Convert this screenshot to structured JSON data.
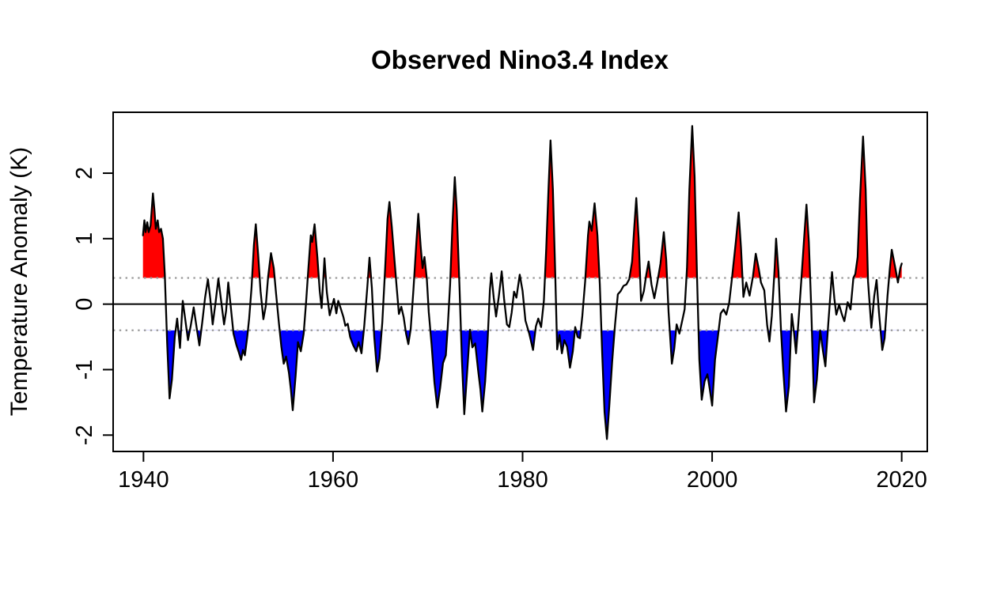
{
  "chart_data": {
    "type": "area",
    "title": "Observed Nino3.4 Index",
    "xlabel": "",
    "ylabel": "Temperature Anomaly (K)",
    "xlim": [
      1936.8,
      2022.7
    ],
    "ylim": [
      -2.25,
      2.93
    ],
    "x_ticks": [
      1940,
      1960,
      1980,
      2000,
      2020
    ],
    "x_tick_labels": [
      "1940",
      "1960",
      "1980",
      "2000",
      "2020"
    ],
    "y_ticks": [
      -2,
      -1,
      0,
      1,
      2
    ],
    "y_tick_labels": [
      "-2",
      "-1",
      "0",
      "1",
      "2"
    ],
    "zero_line": 0,
    "thresholds": {
      "el_nino": 0.4,
      "la_nina": -0.4
    },
    "grid": "off",
    "legend": "none",
    "colors": {
      "warm_fill": "#ff0000",
      "cold_fill": "#0000ff",
      "line": "#000000",
      "threshold_dotted": "#9a9a9a",
      "axis": "#000000",
      "background": "#ffffff"
    },
    "series": [
      {
        "name": "Nino3.4 temperature anomaly",
        "points": [
          [
            1939.95,
            1.05
          ],
          [
            1940.1,
            1.28
          ],
          [
            1940.22,
            1.1
          ],
          [
            1940.4,
            1.25
          ],
          [
            1940.55,
            1.1
          ],
          [
            1940.75,
            1.2
          ],
          [
            1941.0,
            1.69
          ],
          [
            1941.15,
            1.45
          ],
          [
            1941.3,
            1.15
          ],
          [
            1941.5,
            1.28
          ],
          [
            1941.65,
            1.1
          ],
          [
            1941.85,
            1.15
          ],
          [
            1942.05,
            1.0
          ],
          [
            1942.25,
            0.45
          ],
          [
            1942.5,
            -0.6
          ],
          [
            1942.75,
            -1.44
          ],
          [
            1943.0,
            -1.15
          ],
          [
            1943.3,
            -0.5
          ],
          [
            1943.55,
            -0.22
          ],
          [
            1943.85,
            -0.67
          ],
          [
            1944.15,
            0.05
          ],
          [
            1944.4,
            -0.22
          ],
          [
            1944.7,
            -0.55
          ],
          [
            1945.0,
            -0.32
          ],
          [
            1945.3,
            -0.05
          ],
          [
            1945.6,
            -0.35
          ],
          [
            1945.9,
            -0.63
          ],
          [
            1946.2,
            -0.28
          ],
          [
            1946.5,
            0.1
          ],
          [
            1946.8,
            0.38
          ],
          [
            1947.05,
            0.08
          ],
          [
            1947.3,
            -0.31
          ],
          [
            1947.6,
            0.02
          ],
          [
            1947.9,
            0.39
          ],
          [
            1948.2,
            0.04
          ],
          [
            1948.5,
            -0.31
          ],
          [
            1948.72,
            -0.1
          ],
          [
            1948.95,
            0.33
          ],
          [
            1949.2,
            -0.02
          ],
          [
            1949.5,
            -0.45
          ],
          [
            1949.8,
            -0.62
          ],
          [
            1950.05,
            -0.73
          ],
          [
            1950.3,
            -0.85
          ],
          [
            1950.5,
            -0.7
          ],
          [
            1950.7,
            -0.78
          ],
          [
            1950.95,
            -0.5
          ],
          [
            1951.15,
            -0.22
          ],
          [
            1951.4,
            0.25
          ],
          [
            1951.65,
            0.9
          ],
          [
            1951.85,
            1.22
          ],
          [
            1952.1,
            0.75
          ],
          [
            1952.35,
            0.2
          ],
          [
            1952.65,
            -0.23
          ],
          [
            1952.9,
            -0.03
          ],
          [
            1953.15,
            0.42
          ],
          [
            1953.45,
            0.78
          ],
          [
            1953.75,
            0.55
          ],
          [
            1954.0,
            0.15
          ],
          [
            1954.3,
            -0.3
          ],
          [
            1954.55,
            -0.65
          ],
          [
            1954.8,
            -0.91
          ],
          [
            1955.05,
            -0.8
          ],
          [
            1955.35,
            -1.05
          ],
          [
            1955.55,
            -1.3
          ],
          [
            1955.75,
            -1.62
          ],
          [
            1956.05,
            -1.1
          ],
          [
            1956.3,
            -0.58
          ],
          [
            1956.6,
            -0.72
          ],
          [
            1956.9,
            -0.45
          ],
          [
            1957.15,
            0.02
          ],
          [
            1957.4,
            0.55
          ],
          [
            1957.65,
            1.05
          ],
          [
            1957.8,
            0.95
          ],
          [
            1958.05,
            1.22
          ],
          [
            1958.35,
            0.72
          ],
          [
            1958.6,
            0.2
          ],
          [
            1958.8,
            -0.06
          ],
          [
            1959.1,
            0.7
          ],
          [
            1959.35,
            0.18
          ],
          [
            1959.65,
            -0.17
          ],
          [
            1959.9,
            -0.03
          ],
          [
            1960.1,
            0.08
          ],
          [
            1960.35,
            -0.14
          ],
          [
            1960.55,
            0.05
          ],
          [
            1960.8,
            -0.06
          ],
          [
            1961.1,
            -0.2
          ],
          [
            1961.3,
            -0.33
          ],
          [
            1961.55,
            -0.3
          ],
          [
            1961.8,
            -0.5
          ],
          [
            1962.1,
            -0.62
          ],
          [
            1962.45,
            -0.72
          ],
          [
            1962.7,
            -0.58
          ],
          [
            1963.0,
            -0.75
          ],
          [
            1963.3,
            -0.33
          ],
          [
            1963.6,
            0.22
          ],
          [
            1963.85,
            0.71
          ],
          [
            1964.1,
            0.25
          ],
          [
            1964.35,
            -0.5
          ],
          [
            1964.65,
            -1.03
          ],
          [
            1964.9,
            -0.83
          ],
          [
            1965.2,
            -0.28
          ],
          [
            1965.5,
            0.55
          ],
          [
            1965.75,
            1.3
          ],
          [
            1965.95,
            1.56
          ],
          [
            1966.2,
            1.18
          ],
          [
            1966.45,
            0.73
          ],
          [
            1966.7,
            0.28
          ],
          [
            1966.95,
            -0.15
          ],
          [
            1967.2,
            -0.04
          ],
          [
            1967.45,
            -0.2
          ],
          [
            1967.7,
            -0.45
          ],
          [
            1967.95,
            -0.61
          ],
          [
            1968.2,
            -0.38
          ],
          [
            1968.5,
            0.25
          ],
          [
            1968.8,
            0.95
          ],
          [
            1969.0,
            1.38
          ],
          [
            1969.25,
            0.88
          ],
          [
            1969.45,
            0.55
          ],
          [
            1969.65,
            0.72
          ],
          [
            1969.9,
            0.38
          ],
          [
            1970.1,
            -0.12
          ],
          [
            1970.4,
            -0.62
          ],
          [
            1970.7,
            -1.2
          ],
          [
            1971.0,
            -1.58
          ],
          [
            1971.3,
            -1.28
          ],
          [
            1971.6,
            -0.9
          ],
          [
            1971.9,
            -0.78
          ],
          [
            1972.1,
            -0.35
          ],
          [
            1972.35,
            0.3
          ],
          [
            1972.6,
            1.2
          ],
          [
            1972.85,
            1.94
          ],
          [
            1973.05,
            1.45
          ],
          [
            1973.35,
            0.25
          ],
          [
            1973.6,
            -0.85
          ],
          [
            1973.85,
            -1.68
          ],
          [
            1974.1,
            -1.15
          ],
          [
            1974.45,
            -0.39
          ],
          [
            1974.7,
            -0.66
          ],
          [
            1975.0,
            -0.6
          ],
          [
            1975.3,
            -1.0
          ],
          [
            1975.55,
            -1.3
          ],
          [
            1975.75,
            -1.64
          ],
          [
            1976.05,
            -1.18
          ],
          [
            1976.3,
            -0.58
          ],
          [
            1976.55,
            0.22
          ],
          [
            1976.7,
            0.47
          ],
          [
            1976.95,
            0.1
          ],
          [
            1977.2,
            -0.19
          ],
          [
            1977.5,
            0.12
          ],
          [
            1977.8,
            0.5
          ],
          [
            1978.05,
            0.08
          ],
          [
            1978.35,
            -0.31
          ],
          [
            1978.6,
            -0.35
          ],
          [
            1978.85,
            -0.13
          ],
          [
            1979.1,
            0.19
          ],
          [
            1979.35,
            0.1
          ],
          [
            1979.7,
            0.45
          ],
          [
            1980.0,
            0.2
          ],
          [
            1980.3,
            -0.25
          ],
          [
            1980.7,
            -0.45
          ],
          [
            1981.1,
            -0.7
          ],
          [
            1981.4,
            -0.34
          ],
          [
            1981.65,
            -0.22
          ],
          [
            1981.95,
            -0.35
          ],
          [
            1982.25,
            0.05
          ],
          [
            1982.5,
            0.85
          ],
          [
            1982.75,
            1.8
          ],
          [
            1982.95,
            2.5
          ],
          [
            1983.2,
            1.75
          ],
          [
            1983.45,
            0.45
          ],
          [
            1983.65,
            -0.69
          ],
          [
            1983.9,
            -0.47
          ],
          [
            1984.15,
            -0.75
          ],
          [
            1984.4,
            -0.55
          ],
          [
            1984.7,
            -0.65
          ],
          [
            1985.0,
            -0.97
          ],
          [
            1985.3,
            -0.72
          ],
          [
            1985.55,
            -0.35
          ],
          [
            1985.8,
            -0.5
          ],
          [
            1986.05,
            -0.52
          ],
          [
            1986.3,
            -0.18
          ],
          [
            1986.6,
            0.35
          ],
          [
            1986.9,
            1.05
          ],
          [
            1987.05,
            1.26
          ],
          [
            1987.3,
            1.12
          ],
          [
            1987.6,
            1.54
          ],
          [
            1987.9,
            1.05
          ],
          [
            1988.15,
            0.3
          ],
          [
            1988.4,
            -0.75
          ],
          [
            1988.65,
            -1.65
          ],
          [
            1988.9,
            -2.06
          ],
          [
            1989.15,
            -1.55
          ],
          [
            1989.45,
            -0.88
          ],
          [
            1989.75,
            -0.32
          ],
          [
            1990.05,
            0.15
          ],
          [
            1990.35,
            0.2
          ],
          [
            1990.65,
            0.28
          ],
          [
            1990.95,
            0.3
          ],
          [
            1991.25,
            0.38
          ],
          [
            1991.55,
            0.65
          ],
          [
            1991.8,
            1.2
          ],
          [
            1992.0,
            1.62
          ],
          [
            1992.25,
            1.0
          ],
          [
            1992.5,
            0.05
          ],
          [
            1992.8,
            0.2
          ],
          [
            1993.05,
            0.45
          ],
          [
            1993.3,
            0.65
          ],
          [
            1993.6,
            0.3
          ],
          [
            1993.9,
            0.09
          ],
          [
            1994.2,
            0.32
          ],
          [
            1994.55,
            0.62
          ],
          [
            1994.9,
            1.1
          ],
          [
            1995.15,
            0.68
          ],
          [
            1995.4,
            -0.12
          ],
          [
            1995.75,
            -0.91
          ],
          [
            1996.0,
            -0.68
          ],
          [
            1996.25,
            -0.31
          ],
          [
            1996.55,
            -0.45
          ],
          [
            1996.85,
            -0.25
          ],
          [
            1997.1,
            -0.08
          ],
          [
            1997.35,
            0.55
          ],
          [
            1997.6,
            1.75
          ],
          [
            1997.9,
            2.72
          ],
          [
            1998.15,
            1.95
          ],
          [
            1998.4,
            0.45
          ],
          [
            1998.65,
            -0.85
          ],
          [
            1998.9,
            -1.46
          ],
          [
            1999.2,
            -1.18
          ],
          [
            1999.5,
            -1.07
          ],
          [
            1999.75,
            -1.3
          ],
          [
            2000.0,
            -1.55
          ],
          [
            2000.3,
            -0.85
          ],
          [
            2000.6,
            -0.5
          ],
          [
            2000.9,
            -0.14
          ],
          [
            2001.2,
            -0.08
          ],
          [
            2001.5,
            -0.16
          ],
          [
            2001.8,
            0.02
          ],
          [
            2002.1,
            0.4
          ],
          [
            2002.5,
            0.95
          ],
          [
            2002.8,
            1.4
          ],
          [
            2003.05,
            0.85
          ],
          [
            2003.3,
            0.11
          ],
          [
            2003.6,
            0.33
          ],
          [
            2003.95,
            0.13
          ],
          [
            2004.3,
            0.42
          ],
          [
            2004.6,
            0.77
          ],
          [
            2004.9,
            0.55
          ],
          [
            2005.15,
            0.33
          ],
          [
            2005.5,
            0.21
          ],
          [
            2005.8,
            -0.32
          ],
          [
            2006.05,
            -0.57
          ],
          [
            2006.3,
            -0.18
          ],
          [
            2006.6,
            0.55
          ],
          [
            2006.75,
            1.0
          ],
          [
            2007.0,
            0.5
          ],
          [
            2007.25,
            -0.35
          ],
          [
            2007.5,
            -1.0
          ],
          [
            2007.8,
            -1.64
          ],
          [
            2008.1,
            -1.25
          ],
          [
            2008.4,
            -0.15
          ],
          [
            2008.65,
            -0.45
          ],
          [
            2008.85,
            -0.75
          ],
          [
            2009.1,
            -0.28
          ],
          [
            2009.4,
            0.35
          ],
          [
            2009.7,
            1.0
          ],
          [
            2009.95,
            1.52
          ],
          [
            2010.2,
            0.95
          ],
          [
            2010.45,
            -0.05
          ],
          [
            2010.75,
            -1.5
          ],
          [
            2011.05,
            -1.15
          ],
          [
            2011.4,
            -0.4
          ],
          [
            2011.7,
            -0.72
          ],
          [
            2011.95,
            -0.95
          ],
          [
            2012.25,
            -0.31
          ],
          [
            2012.65,
            0.49
          ],
          [
            2012.9,
            0.08
          ],
          [
            2013.1,
            -0.16
          ],
          [
            2013.4,
            -0.01
          ],
          [
            2013.7,
            -0.16
          ],
          [
            2013.95,
            -0.26
          ],
          [
            2014.3,
            0.03
          ],
          [
            2014.6,
            -0.08
          ],
          [
            2014.9,
            0.4
          ],
          [
            2015.1,
            0.46
          ],
          [
            2015.35,
            0.72
          ],
          [
            2015.6,
            1.6
          ],
          [
            2015.92,
            2.56
          ],
          [
            2016.2,
            1.75
          ],
          [
            2016.45,
            0.35
          ],
          [
            2016.8,
            -0.36
          ],
          [
            2017.1,
            0.12
          ],
          [
            2017.35,
            0.37
          ],
          [
            2017.6,
            -0.12
          ],
          [
            2017.95,
            -0.7
          ],
          [
            2018.2,
            -0.52
          ],
          [
            2018.5,
            0.12
          ],
          [
            2018.75,
            0.55
          ],
          [
            2018.95,
            0.83
          ],
          [
            2019.3,
            0.57
          ],
          [
            2019.6,
            0.33
          ],
          [
            2019.85,
            0.55
          ],
          [
            2020.0,
            0.62
          ]
        ]
      }
    ]
  }
}
